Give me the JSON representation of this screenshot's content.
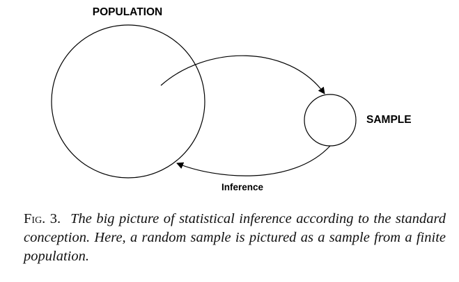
{
  "diagram": {
    "population_label": "POPULATION",
    "sample_label": "SAMPLE",
    "inference_label": "Inference"
  },
  "caption": {
    "figure_label": "Fig. 3.",
    "text": "The big picture of statistical inference according to the standard conception. Here, a random sample is pictured as a sample from a finite population."
  }
}
